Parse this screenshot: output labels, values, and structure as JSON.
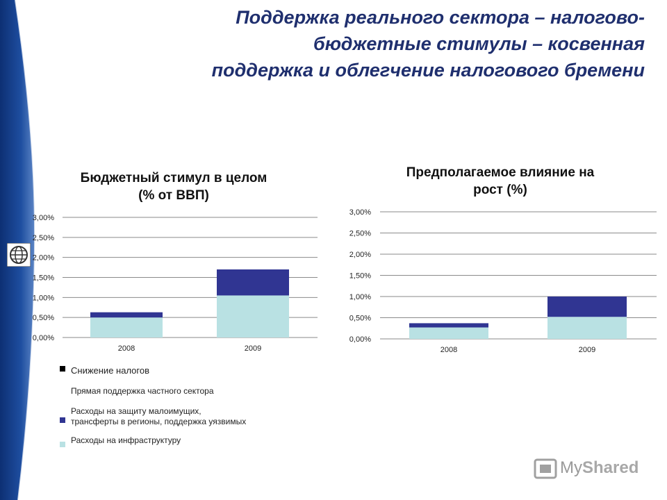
{
  "slide": {
    "title_lines": [
      "Поддержка реального сектора – налогово-",
      "бюджетные стимулы – косвенная",
      "поддержка и облегчение налогового бремени"
    ]
  },
  "chart_data": [
    {
      "type": "bar",
      "stacked": true,
      "title_lines": [
        "Бюджетный стимул в целом",
        "(% от ВВП)"
      ],
      "categories": [
        "2008",
        "2009"
      ],
      "yticks": [
        "0,00%",
        "0,50%",
        "1,00%",
        "1,50%",
        "2,00%",
        "2,50%",
        "3,00%"
      ],
      "ylim": [
        0,
        3
      ],
      "series": [
        {
          "name": "Расходы на инфраструктуру",
          "color": "#b9e1e3",
          "values": [
            0.5,
            1.05
          ]
        },
        {
          "name": "Расходы на защиту малоимущих, трансферты в регионы, поддержка уязвимых",
          "color": "#303592",
          "values": [
            0.13,
            0.65
          ]
        }
      ],
      "grid": true
    },
    {
      "type": "bar",
      "stacked": true,
      "title_lines": [
        "Предполагаемое влияние на",
        "рост (%)"
      ],
      "categories": [
        "2008",
        "2009"
      ],
      "yticks": [
        "0,00%",
        "0,50%",
        "1,00%",
        "1,50%",
        "2,00%",
        "2,50%",
        "3,00%"
      ],
      "ylim": [
        0,
        3
      ],
      "series": [
        {
          "name": "Расходы на инфраструктуру",
          "color": "#b9e1e3",
          "values": [
            0.27,
            0.52
          ]
        },
        {
          "name": "Расходы на защиту малоимущих, трансферты в регионы, поддержка уязвимых",
          "color": "#303592",
          "values": [
            0.1,
            0.48
          ]
        }
      ],
      "grid": true
    }
  ],
  "legend": [
    {
      "label": "Снижение налогов",
      "color": "#000000"
    },
    {
      "label": "Прямая поддержка частного сектора",
      "color": ""
    },
    {
      "label_lines": [
        "Расходы на защиту малоимущих,",
        "трансферты в регионы, поддержка уязвимых"
      ],
      "color": "#303592"
    },
    {
      "label": "Расходы на инфраструктуру",
      "color": "#b9e1e3"
    }
  ],
  "logo": {
    "text_a": "My",
    "text_b": "Shared"
  },
  "icons": {
    "globe": "globe-icon",
    "logo": "myshared-logo-icon"
  }
}
